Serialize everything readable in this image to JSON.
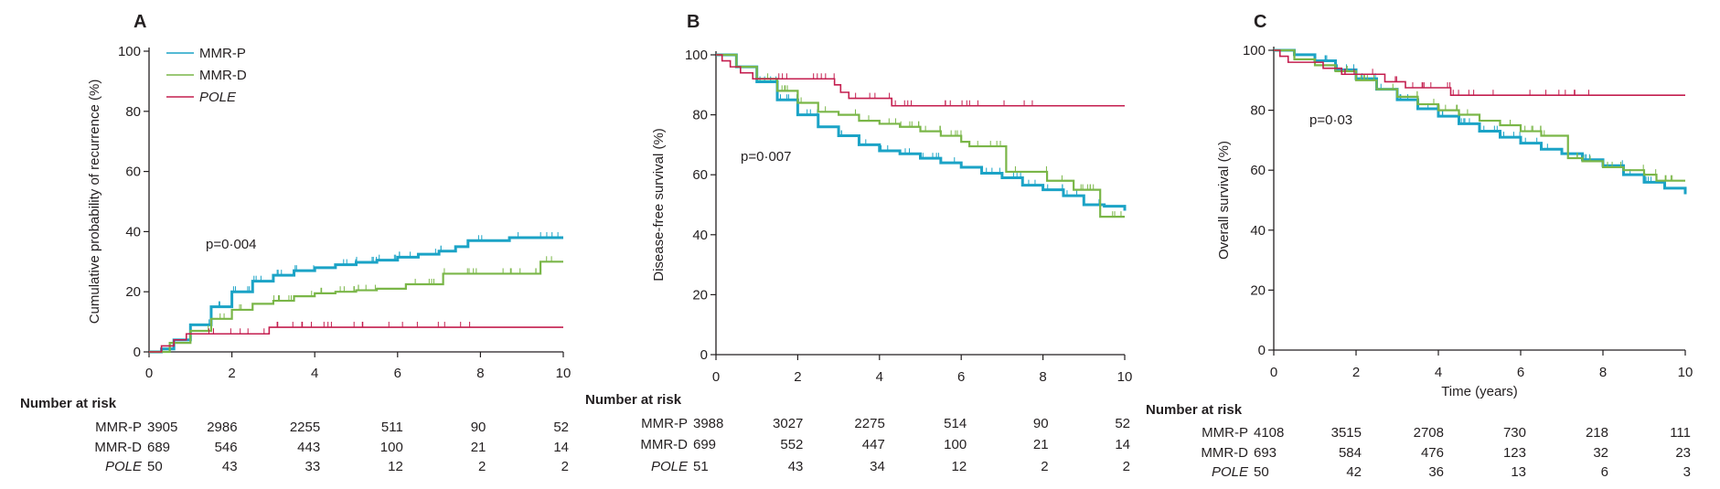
{
  "colors": {
    "MMR-P": "#1ba3c6",
    "MMR-D": "#7ab648",
    "POLE": "#c41e4f",
    "axis": "#231f20"
  },
  "legend": [
    {
      "name": "MMR-P",
      "italic": false
    },
    {
      "name": "MMR-D",
      "italic": false
    },
    {
      "name": "POLE",
      "italic": true
    }
  ],
  "risk_header": "Number at risk",
  "chart_data": [
    {
      "type": "line",
      "panel": "A",
      "title": "",
      "xlabel": "",
      "ylabel": "Cumulative probability of recurrence (%)",
      "xlim": [
        0,
        10
      ],
      "ylim": [
        0,
        100
      ],
      "xticks": [
        0,
        2,
        4,
        6,
        8,
        10
      ],
      "yticks": [
        0,
        20,
        40,
        60,
        80,
        100
      ],
      "annotation": "p=0·004",
      "legend_position": "top-left",
      "series": [
        {
          "name": "MMR-P",
          "x": [
            0,
            0.3,
            0.6,
            1,
            1.5,
            2,
            2.5,
            3,
            3.5,
            4,
            4.5,
            5,
            5.5,
            6,
            6.5,
            7,
            7.4,
            7.7,
            8.7,
            10
          ],
          "y": [
            0,
            1,
            4,
            9,
            15,
            20,
            23.5,
            25.5,
            27,
            28,
            29,
            29.8,
            30.5,
            31.5,
            32.5,
            33.5,
            35,
            37,
            38,
            38
          ]
        },
        {
          "name": "MMR-D",
          "x": [
            0,
            0.5,
            1,
            1.5,
            2,
            2.5,
            3,
            3.5,
            4,
            4.5,
            5,
            5.5,
            6,
            6.2,
            7,
            7.1,
            9.4,
            9.45,
            10
          ],
          "y": [
            0,
            3,
            7,
            11,
            14,
            16,
            17,
            18.5,
            19.5,
            20,
            20.5,
            21,
            21,
            22.5,
            22.5,
            26,
            26,
            30,
            30
          ]
        },
        {
          "name": "POLE",
          "x": [
            0,
            0.3,
            0.3,
            0.6,
            0.6,
            0.9,
            0.9,
            2.9,
            2.9,
            10
          ],
          "y": [
            0,
            0,
            2,
            2,
            4,
            4,
            6,
            6,
            8.2,
            8.2
          ]
        }
      ],
      "number_at_risk": {
        "MMR-P": [
          3905,
          2986,
          2255,
          511,
          90,
          52
        ],
        "MMR-D": [
          689,
          546,
          443,
          100,
          21,
          14
        ],
        "POLE": [
          50,
          43,
          33,
          12,
          2,
          2
        ]
      }
    },
    {
      "type": "line",
      "panel": "B",
      "title": "",
      "xlabel": "",
      "ylabel": "Disease-free survival (%)",
      "xlim": [
        0,
        10
      ],
      "ylim": [
        0,
        100
      ],
      "xticks": [
        0,
        2,
        4,
        6,
        8,
        10
      ],
      "yticks": [
        0,
        20,
        40,
        60,
        80,
        100
      ],
      "annotation": "p=0·007",
      "series": [
        {
          "name": "MMR-P",
          "x": [
            0,
            0.5,
            1,
            1.5,
            2,
            2.5,
            3,
            3.5,
            4,
            4.5,
            5,
            5.5,
            6,
            6.5,
            7,
            7.5,
            8,
            8.5,
            9,
            9.5,
            10
          ],
          "y": [
            100,
            96,
            91,
            85,
            80,
            76,
            73,
            70,
            68,
            67,
            65.5,
            64,
            62.5,
            60.5,
            59,
            56.5,
            55,
            53,
            50,
            49.5,
            48
          ]
        },
        {
          "name": "MMR-D",
          "x": [
            0,
            0.5,
            1,
            1.5,
            2,
            2.5,
            3,
            3.5,
            4,
            4.5,
            5,
            5.5,
            6,
            6.2,
            7,
            7.1,
            8.1,
            8.1,
            8.75,
            8.75,
            9.25,
            9.4,
            10
          ],
          "y": [
            100,
            96,
            92,
            88,
            84,
            81,
            80,
            78,
            77,
            76,
            74.5,
            73,
            71,
            69.5,
            69.5,
            61,
            61,
            58,
            58,
            55,
            55,
            46,
            46
          ]
        },
        {
          "name": "POLE",
          "x": [
            0,
            0.15,
            0.15,
            0.35,
            0.35,
            0.6,
            0.6,
            0.9,
            0.9,
            2.9,
            2.9,
            3.05,
            3.05,
            3.25,
            3.25,
            4.3,
            4.3,
            10
          ],
          "y": [
            100,
            100,
            98,
            98,
            96,
            96,
            94,
            94,
            92,
            92,
            90,
            90,
            87.5,
            87.5,
            85.5,
            85.5,
            83,
            83
          ]
        }
      ],
      "number_at_risk": {
        "MMR-P": [
          3988,
          3027,
          2275,
          514,
          90,
          52
        ],
        "MMR-D": [
          699,
          552,
          447,
          100,
          21,
          14
        ],
        "POLE": [
          51,
          43,
          34,
          12,
          2,
          2
        ]
      }
    },
    {
      "type": "line",
      "panel": "C",
      "title": "",
      "xlabel": "Time (years)",
      "ylabel": "Overall survival (%)",
      "xlim": [
        0,
        10
      ],
      "ylim": [
        0,
        100
      ],
      "xticks": [
        0,
        2,
        4,
        6,
        8,
        10
      ],
      "yticks": [
        0,
        20,
        40,
        60,
        80,
        100
      ],
      "annotation": "p=0·03",
      "series": [
        {
          "name": "MMR-P",
          "x": [
            0,
            0.5,
            1,
            1.5,
            2,
            2.5,
            3,
            3.5,
            4,
            4.5,
            5,
            5.5,
            6,
            6.5,
            7,
            7.5,
            8,
            8.5,
            9,
            9.5,
            10
          ],
          "y": [
            100,
            98.5,
            96.5,
            93.5,
            90.5,
            87,
            83.5,
            80.5,
            78,
            75.5,
            73,
            71,
            69,
            67,
            65.5,
            63.5,
            61.5,
            58.5,
            56,
            54,
            52
          ]
        },
        {
          "name": "MMR-D",
          "x": [
            0,
            0.5,
            1,
            1.5,
            2,
            2.5,
            3,
            3.5,
            4,
            4.5,
            5,
            5.5,
            6,
            6.5,
            7,
            7.15,
            7.5,
            8,
            8.5,
            9,
            9.3,
            10
          ],
          "y": [
            100,
            97,
            95,
            93,
            90,
            87,
            84.5,
            82,
            80,
            78.5,
            76.5,
            75,
            73,
            71.5,
            71.5,
            64,
            63,
            61,
            60,
            58.5,
            56.5,
            56.5
          ]
        },
        {
          "name": "POLE",
          "x": [
            0,
            0.15,
            0.15,
            0.35,
            0.35,
            1.2,
            1.2,
            1.65,
            1.65,
            2.7,
            2.7,
            3.2,
            3.2,
            4.3,
            4.3,
            10
          ],
          "y": [
            100,
            100,
            98,
            98,
            96,
            96,
            94,
            94,
            92,
            92,
            89.5,
            89.5,
            87.5,
            87.5,
            85,
            85
          ]
        }
      ],
      "number_at_risk": {
        "MMR-P": [
          4108,
          3515,
          2708,
          730,
          218,
          111
        ],
        "MMR-D": [
          693,
          584,
          476,
          123,
          32,
          23
        ],
        "POLE": [
          50,
          42,
          36,
          13,
          6,
          3
        ]
      }
    }
  ]
}
